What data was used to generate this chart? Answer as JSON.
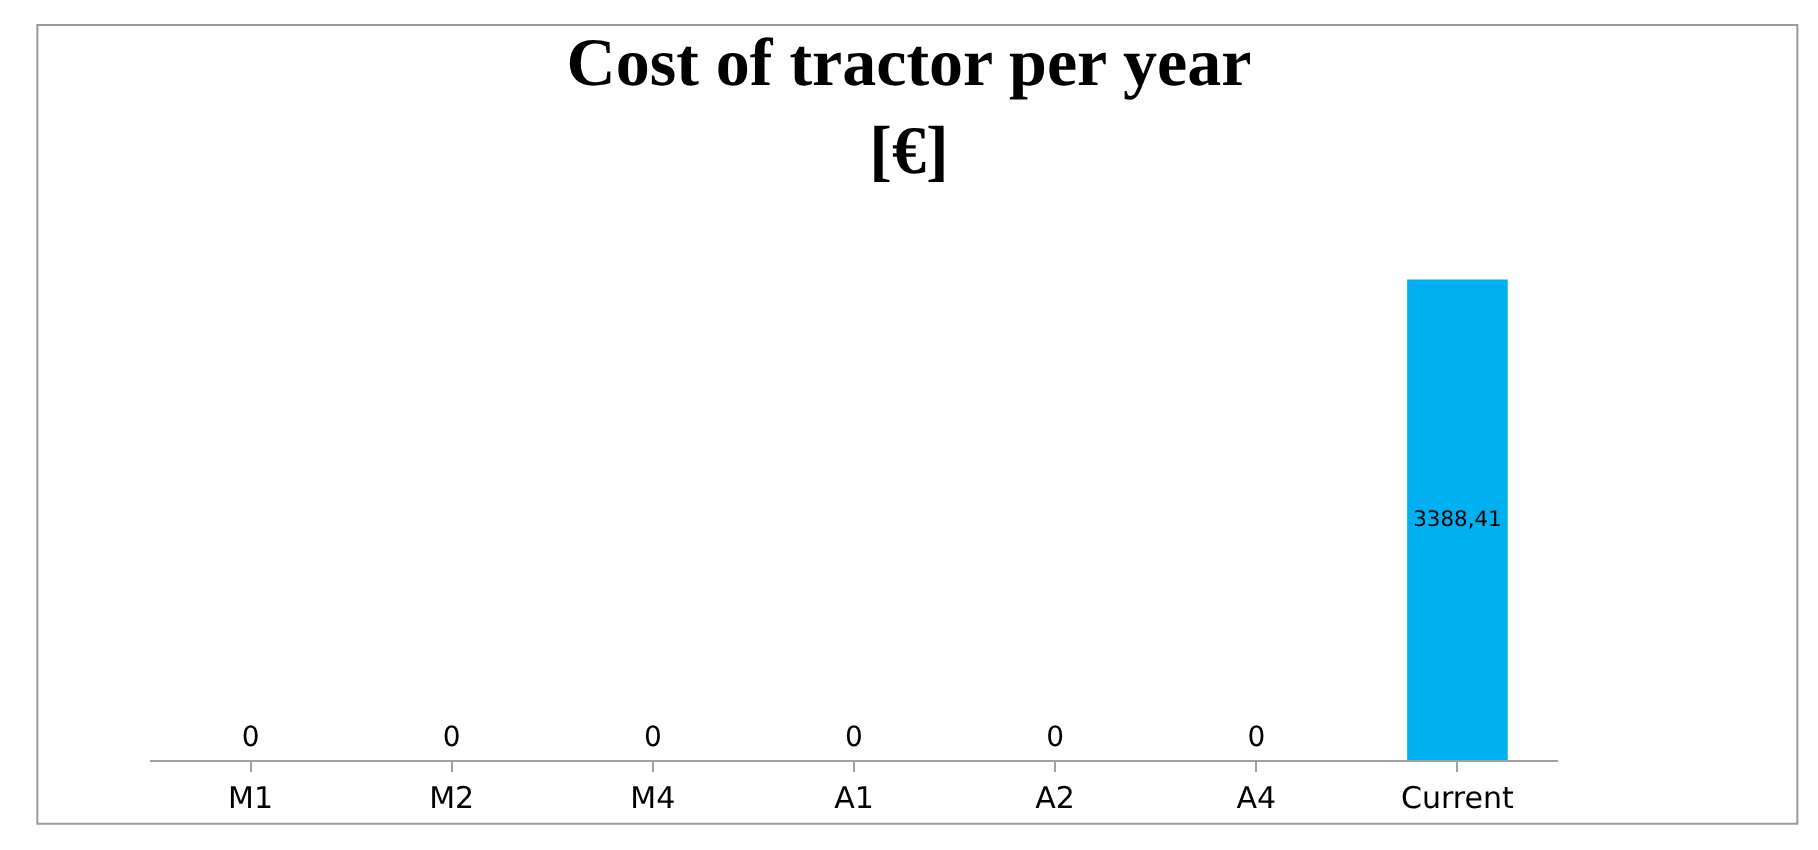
{
  "chart_data": {
    "type": "bar",
    "title": "Cost of tractor per year\n[€]",
    "categories": [
      "M1",
      "M2",
      "M4",
      "A1",
      "A2",
      "A4",
      "Current"
    ],
    "values": [
      0,
      0,
      0,
      0,
      0,
      0,
      3388.41
    ],
    "value_labels": [
      "0",
      "0",
      "0",
      "0",
      "0",
      "0",
      "3388,41"
    ],
    "color": "#00b0f0",
    "legend": false
  }
}
